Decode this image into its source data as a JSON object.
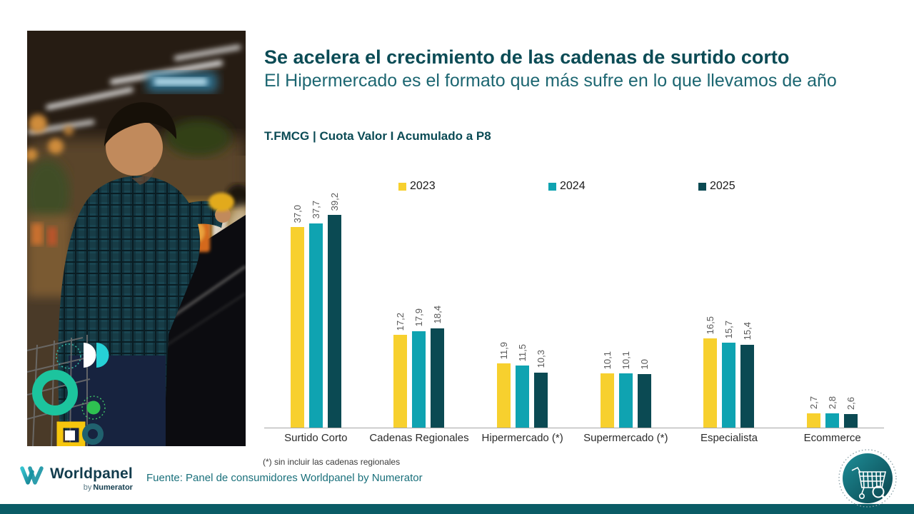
{
  "slide": {
    "title": "Se acelera el crecimiento de las cadenas de surtido corto",
    "subtitle": "El Hipermercado es el formato que más sufre en lo que llevamos de año",
    "footnote": "(*) sin incluir las cadenas regionales",
    "source": "Fuente: Panel de consumidores Worldpanel by Numerator"
  },
  "logo": {
    "brand": "Worldpanel",
    "sub_prefix": "by",
    "sub_brand": "Numerator"
  },
  "icons": {
    "footer_badge": "shopping-cart-search-icon",
    "logo_mark": "worldpanel-w-icon"
  },
  "colors": {
    "title": "#0b4b55",
    "subtitle": "#1c6671",
    "accent_bar": "#0a5c66",
    "bar_2023": "#f7d02e",
    "bar_2024": "#0fa3b1",
    "bar_2025": "#0b4a53",
    "axis": "#a6a6a6",
    "value_label": "#595959",
    "source_text": "#1a707b"
  },
  "chart_data": {
    "type": "bar",
    "title": "T.FMCG | Cuota Valor I Acumulado a P8",
    "categories": [
      "Surtido Corto",
      "Cadenas Regionales",
      "Hipermercado (*)",
      "Supermercado (*)",
      "Especialista",
      "Ecommerce"
    ],
    "series": [
      {
        "name": "2023",
        "color": "#f7d02e",
        "values": [
          37.0,
          17.2,
          11.9,
          10.1,
          16.5,
          2.7
        ],
        "labels": [
          "37,0",
          "17,2",
          "11,9",
          "10,1",
          "16,5",
          "2,7"
        ]
      },
      {
        "name": "2024",
        "color": "#0fa3b1",
        "values": [
          37.7,
          17.9,
          11.5,
          10.1,
          15.7,
          2.8
        ],
        "labels": [
          "37,7",
          "17,9",
          "11,5",
          "10,1",
          "15,7",
          "2,8"
        ]
      },
      {
        "name": "2025",
        "color": "#0b4a53",
        "values": [
          39.2,
          18.4,
          10.3,
          10.0,
          15.4,
          2.6
        ],
        "labels": [
          "39,2",
          "18,4",
          "10,3",
          "10",
          "15,4",
          "2,6"
        ]
      }
    ],
    "ylim": [
      0,
      42
    ],
    "grid": false,
    "legend_position": "top",
    "value_labels_rotated": true
  }
}
